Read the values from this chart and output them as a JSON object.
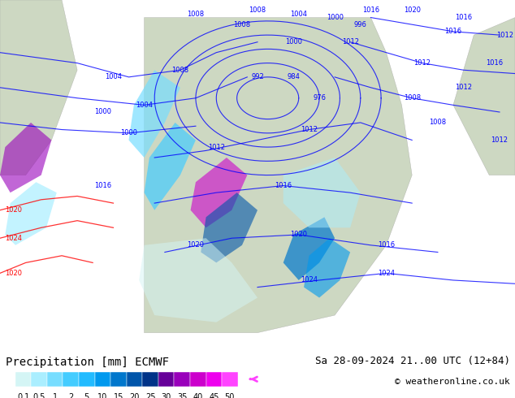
{
  "title_left": "Precipitation [mm] ECMWF",
  "title_right": "Sa 28-09-2024 21..00 UTC (12+84)",
  "credit": "© weatheronline.co.uk",
  "colorbar_levels": [
    0.1,
    0.5,
    1,
    2,
    5,
    10,
    15,
    20,
    25,
    30,
    35,
    40,
    45,
    50
  ],
  "colorbar_colors": [
    "#d4f5f5",
    "#aaeeff",
    "#77ddff",
    "#44ccff",
    "#22bbff",
    "#0099ee",
    "#0077cc",
    "#0055aa",
    "#003388",
    "#660099",
    "#9900bb",
    "#cc00cc",
    "#ee00ee",
    "#ff44ff"
  ],
  "bg_color": "#ffffff",
  "map_bg": "#e8e8e8",
  "label_fontsize": 9,
  "credit_fontsize": 8,
  "title_fontsize": 10
}
